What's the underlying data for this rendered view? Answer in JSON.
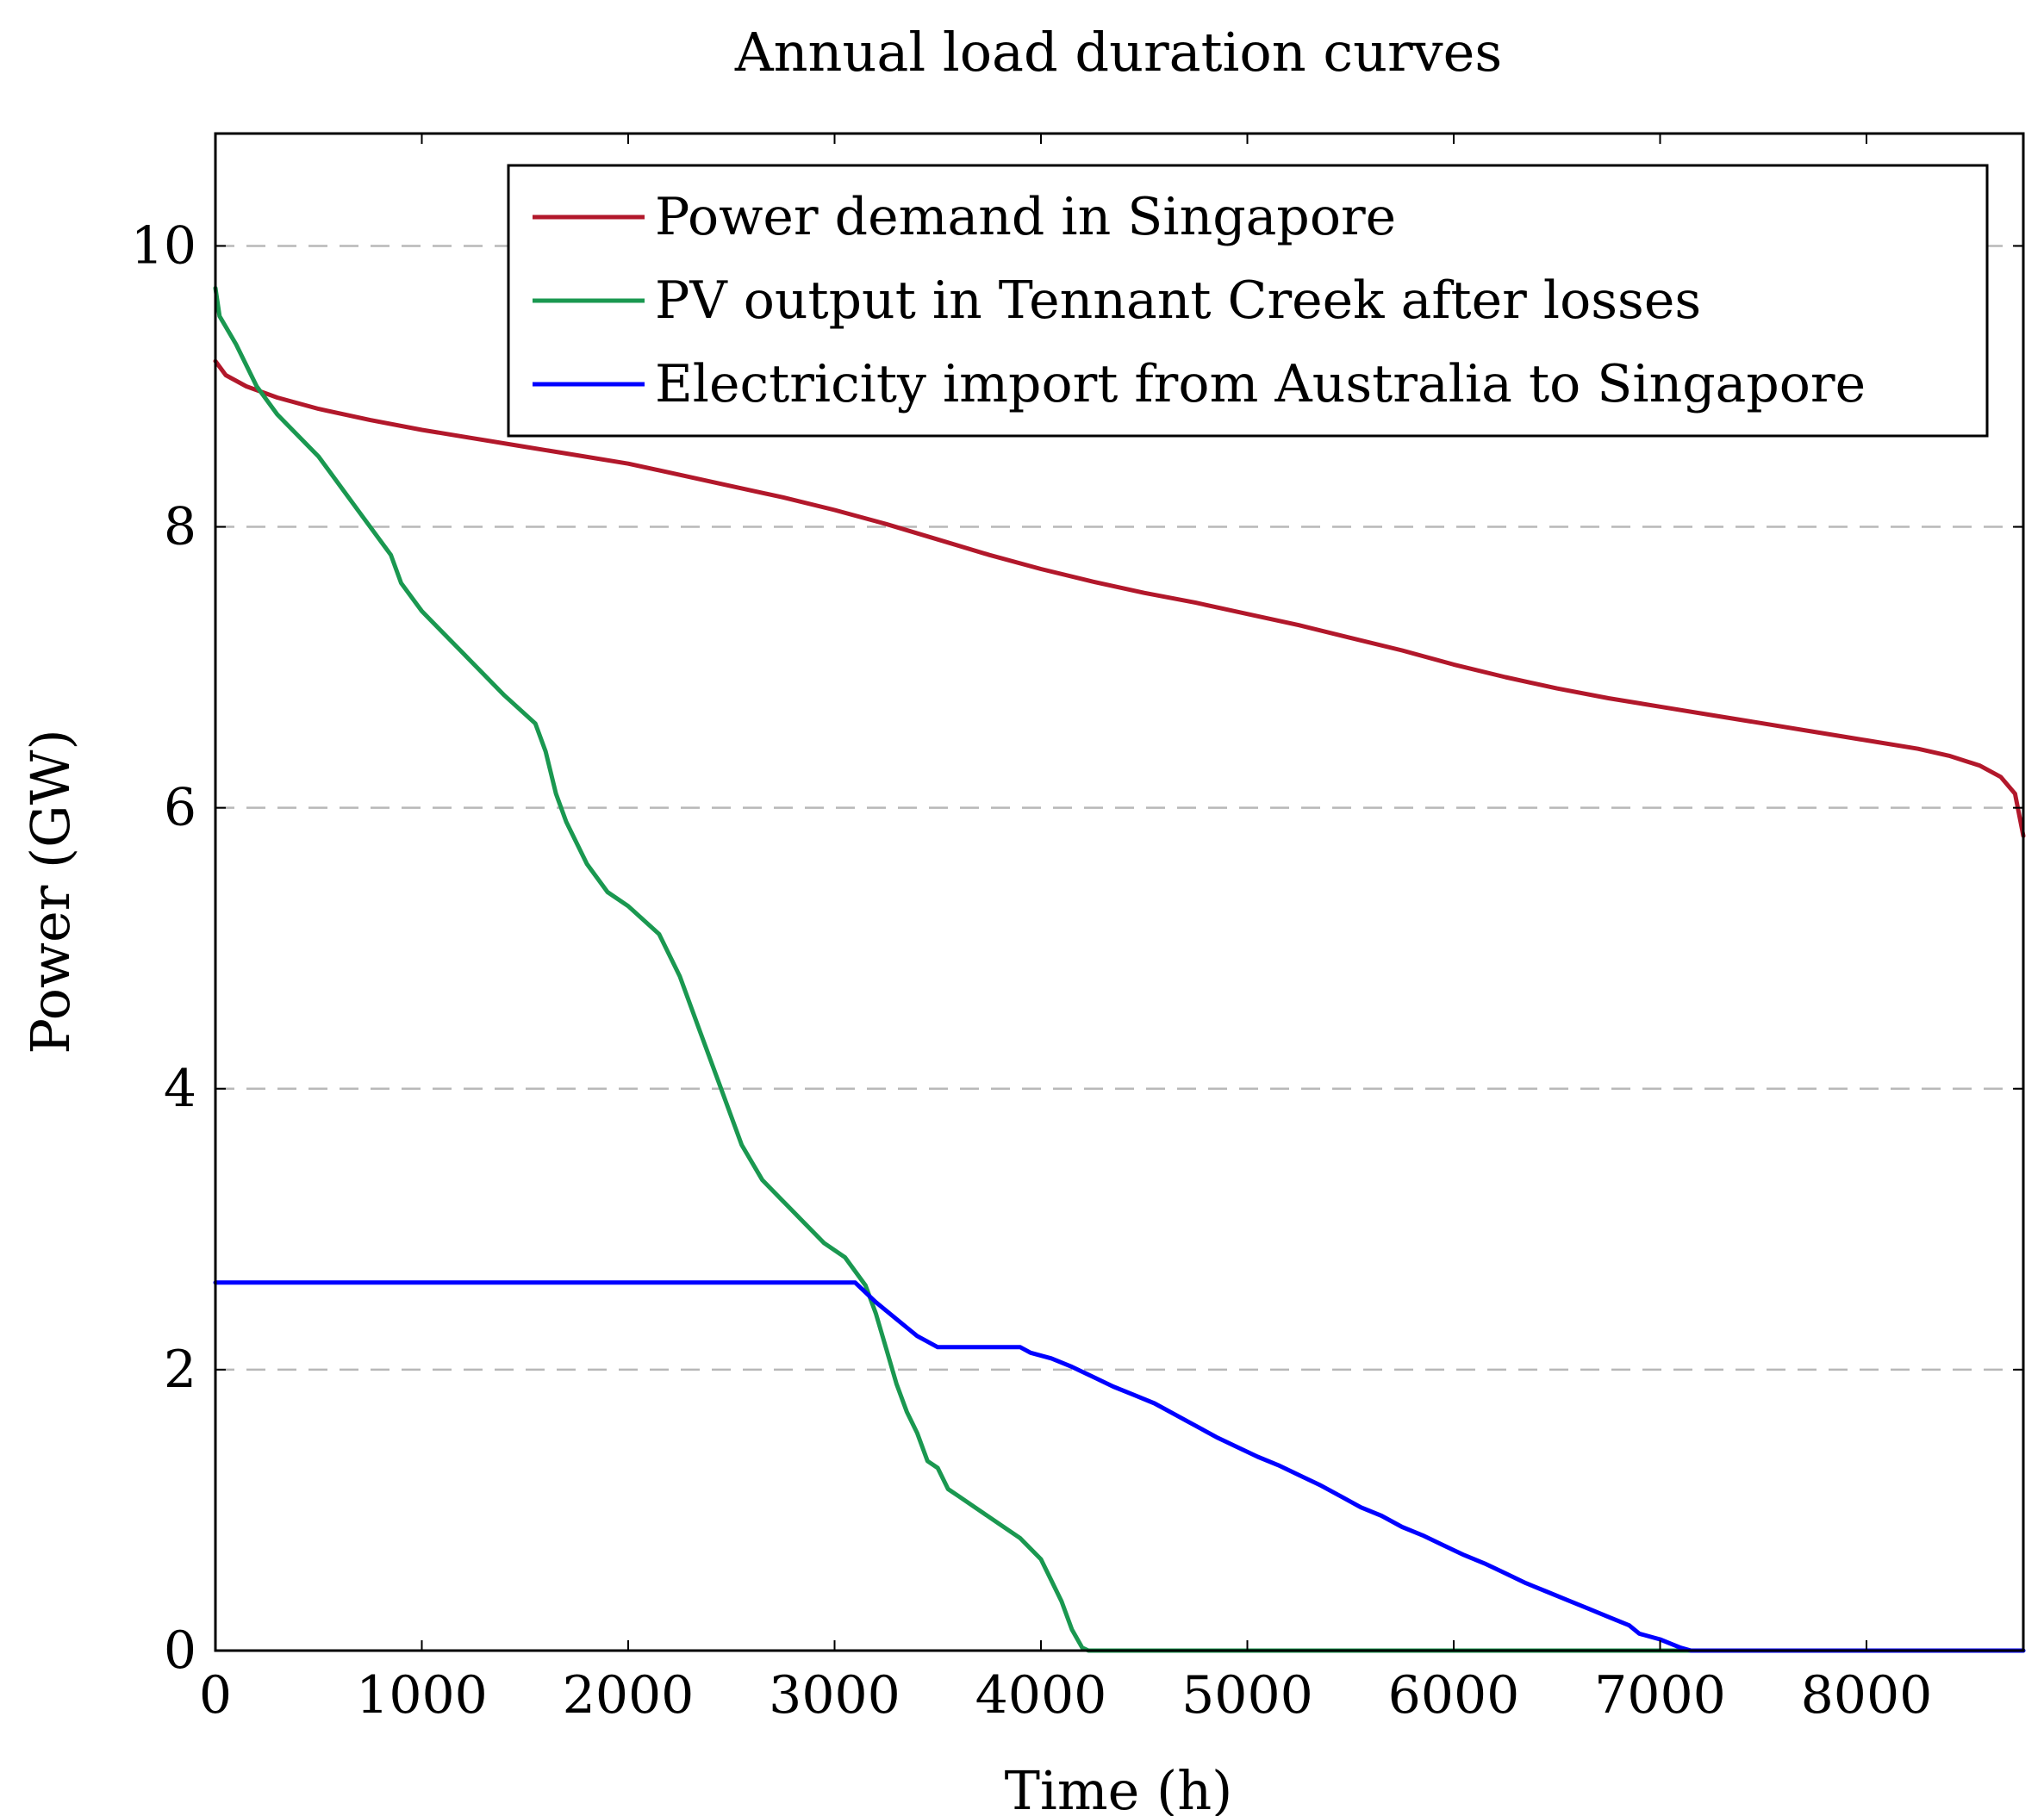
{
  "chart_data": {
    "type": "line",
    "title": "Annual load duration curves",
    "xlabel": "Time (h)",
    "ylabel": "Power (GW)",
    "xlim": [
      0,
      8760
    ],
    "ylim": [
      0,
      10.8
    ],
    "xticks": [
      0,
      1000,
      2000,
      3000,
      4000,
      5000,
      6000,
      7000,
      8000
    ],
    "yticks": [
      0,
      2,
      4,
      6,
      8,
      10
    ],
    "grid": "horizontal dashed",
    "legend_position": "top-right",
    "series": [
      {
        "name": "Power demand in Singapore",
        "color": "#b2182b",
        "x": [
          0,
          50,
          150,
          300,
          500,
          750,
          1000,
          1250,
          1500,
          1750,
          2000,
          2250,
          2500,
          2750,
          3000,
          3250,
          3500,
          3750,
          4000,
          4250,
          4500,
          4750,
          5000,
          5250,
          5500,
          5750,
          6000,
          6250,
          6500,
          6750,
          7000,
          7250,
          7500,
          7750,
          8000,
          8250,
          8400,
          8550,
          8650,
          8720,
          8760
        ],
        "y": [
          9.18,
          9.08,
          9.0,
          8.92,
          8.84,
          8.76,
          8.69,
          8.63,
          8.57,
          8.51,
          8.45,
          8.37,
          8.29,
          8.21,
          8.12,
          8.02,
          7.91,
          7.8,
          7.7,
          7.61,
          7.53,
          7.46,
          7.38,
          7.3,
          7.21,
          7.12,
          7.02,
          6.93,
          6.85,
          6.78,
          6.72,
          6.66,
          6.6,
          6.54,
          6.48,
          6.42,
          6.37,
          6.3,
          6.22,
          6.1,
          5.8
        ]
      },
      {
        "name": "PV output in Tennant Creek after losses",
        "color": "#1a9850",
        "x": [
          0,
          20,
          100,
          200,
          300,
          500,
          700,
          850,
          900,
          1000,
          1200,
          1400,
          1550,
          1600,
          1650,
          1700,
          1800,
          1900,
          2000,
          2150,
          2250,
          2350,
          2450,
          2550,
          2650,
          2750,
          2850,
          2950,
          3050,
          3150,
          3200,
          3250,
          3300,
          3350,
          3400,
          3450,
          3500,
          3550,
          3600,
          3700,
          3800,
          3900,
          4000,
          4050,
          4100,
          4150,
          4200,
          4230,
          4300,
          5000,
          6000,
          7000,
          8000,
          8760
        ],
        "y": [
          9.7,
          9.5,
          9.3,
          9.0,
          8.8,
          8.5,
          8.1,
          7.8,
          7.6,
          7.4,
          7.1,
          6.8,
          6.6,
          6.4,
          6.1,
          5.9,
          5.6,
          5.4,
          5.3,
          5.1,
          4.8,
          4.4,
          4.0,
          3.6,
          3.35,
          3.2,
          3.05,
          2.9,
          2.8,
          2.6,
          2.4,
          2.15,
          1.9,
          1.7,
          1.55,
          1.35,
          1.3,
          1.15,
          1.1,
          1.0,
          0.9,
          0.8,
          0.65,
          0.5,
          0.35,
          0.15,
          0.02,
          0,
          0,
          0,
          0,
          0,
          0,
          0
        ]
      },
      {
        "name": "Electricity import from Australia to Singapore",
        "color": "#0000ff",
        "x": [
          0,
          3100,
          3150,
          3200,
          3250,
          3300,
          3350,
          3400,
          3450,
          3500,
          3900,
          3950,
          4050,
          4150,
          4250,
          4350,
          4450,
          4550,
          4650,
          4750,
          4850,
          4950,
          5050,
          5150,
          5250,
          5350,
          5450,
          5550,
          5650,
          5750,
          5850,
          5950,
          6050,
          6150,
          6250,
          6350,
          6450,
          6550,
          6650,
          6750,
          6850,
          6900,
          7000,
          7100,
          7150,
          8760
        ],
        "y": [
          2.62,
          2.62,
          2.55,
          2.48,
          2.42,
          2.36,
          2.3,
          2.24,
          2.2,
          2.16,
          2.16,
          2.12,
          2.08,
          2.02,
          1.95,
          1.88,
          1.82,
          1.76,
          1.68,
          1.6,
          1.52,
          1.45,
          1.38,
          1.32,
          1.25,
          1.18,
          1.1,
          1.02,
          0.96,
          0.88,
          0.82,
          0.75,
          0.68,
          0.62,
          0.55,
          0.48,
          0.42,
          0.36,
          0.3,
          0.24,
          0.18,
          0.12,
          0.08,
          0.02,
          0,
          0
        ]
      }
    ]
  }
}
